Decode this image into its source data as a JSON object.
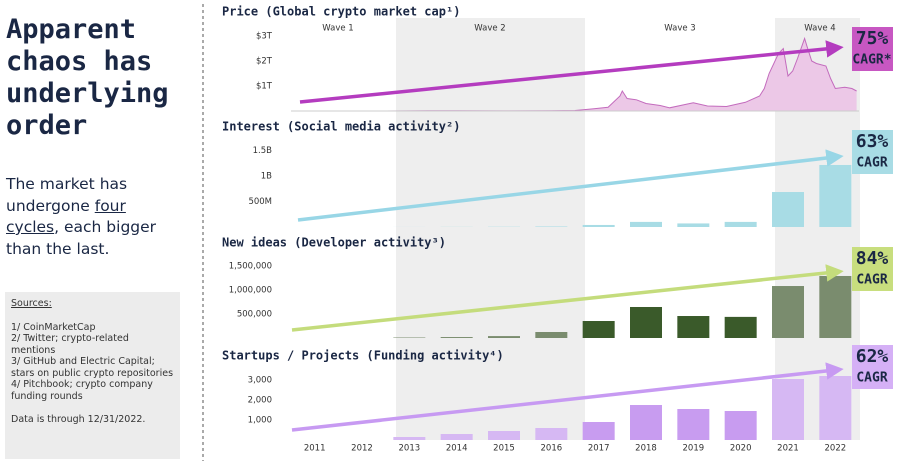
{
  "heading": "Apparent chaos has underlying order",
  "intro": {
    "before": "The market has undergone ",
    "link": "four cycles",
    "after": ", each bigger than the last."
  },
  "sources": {
    "title": "Sources:",
    "items": [
      "1/ CoinMarketCap",
      "2/ Twitter; crypto-related mentions",
      "3/ GitHub and Electric Capital; stars on public crypto repositories",
      "4/ Pitchbook; crypto company funding rounds"
    ],
    "note": "Data is through 12/31/2022."
  },
  "waves": [
    "Wave 1",
    "Wave 2",
    "Wave 3",
    "Wave 4"
  ],
  "chart_data": [
    {
      "type": "area",
      "title": "Price (Global crypto market cap¹)",
      "x": [
        2011,
        2013,
        2013.9,
        2014.5,
        2015.5,
        2016.5,
        2017.0,
        2017.4,
        2017.7,
        2017.95,
        2018.0,
        2018.1,
        2018.3,
        2018.5,
        2018.8,
        2019.0,
        2019.5,
        2019.8,
        2020.2,
        2020.6,
        2020.9,
        2021.0,
        2021.1,
        2021.3,
        2021.4,
        2021.5,
        2021.6,
        2021.7,
        2021.85,
        2021.9,
        2022.0,
        2022.1,
        2022.3,
        2022.4,
        2022.5,
        2022.7,
        2022.85,
        2022.95
      ],
      "values": [
        0,
        0.001,
        0.012,
        0.008,
        0.004,
        0.01,
        0.018,
        0.09,
        0.15,
        0.6,
        0.8,
        0.5,
        0.45,
        0.3,
        0.22,
        0.13,
        0.33,
        0.2,
        0.18,
        0.35,
        0.6,
        0.9,
        1.5,
        2.3,
        2.5,
        1.4,
        1.6,
        2.1,
        2.9,
        2.6,
        2.0,
        1.9,
        1.8,
        1.3,
        0.9,
        0.95,
        0.9,
        0.8
      ],
      "xlim": [
        2011,
        2023
      ],
      "ylim": [
        0,
        3.5
      ],
      "yticks": [
        {
          "value": 1,
          "label": "$1T"
        },
        {
          "value": 2,
          "label": "$2T"
        },
        {
          "value": 3,
          "label": "$3T"
        }
      ],
      "color": "#c36bbd",
      "fill": "#ecc8e7",
      "trend_color": "#b43cbf",
      "badge_color": "#c757c2",
      "cagr": "75%",
      "cagr_label": "CAGR*"
    },
    {
      "type": "bar",
      "title": "Interest (Social media activity²)",
      "values": [
        0,
        0,
        1,
        3,
        5,
        10,
        40,
        100,
        70,
        100,
        686,
        1216
      ],
      "ylim": [
        0,
        1700
      ],
      "yticks": [
        {
          "value": 500,
          "label": "500M"
        },
        {
          "value": 1000,
          "label": "1B"
        },
        {
          "value": 1500,
          "label": "1.5B"
        }
      ],
      "colors": [
        "#a8dce5",
        "#a8dce5",
        "#a8dce5",
        "#a8dce5",
        "#a8dce5",
        "#a8dce5",
        "#a8dce5",
        "#a8dce5",
        "#a8dce5",
        "#a8dce5",
        "#a8dce5",
        "#a8dce5"
      ],
      "trend_color": "#98d6e6",
      "badge_color": "#a8dce5",
      "cagr": "63%",
      "cagr_label": "CAGR"
    },
    {
      "type": "bar",
      "title": "New ideas (Developer activity³)",
      "values": [
        0,
        0,
        10000,
        20000,
        40000,
        125000,
        354000,
        646000,
        458000,
        440000,
        1083000,
        1292000
      ],
      "ylim": [
        0,
        1750000
      ],
      "yticks": [
        {
          "value": 500000,
          "label": "500,000"
        },
        {
          "value": 1000000,
          "label": "1,000,000"
        },
        {
          "value": 1500000,
          "label": "1,500,000"
        }
      ],
      "colors": [
        "#3a5a2a",
        "#3a5a2a",
        "#7a8c6e",
        "#7a8c6e",
        "#7a8c6e",
        "#7a8c6e",
        "#3a5a2a",
        "#3a5a2a",
        "#3a5a2a",
        "#3a5a2a",
        "#7a8c6e",
        "#7a8c6e"
      ],
      "trend_color": "#c4dc7c",
      "badge_color": "#c8de7e",
      "cagr": "84%",
      "cagr_label": "CAGR"
    },
    {
      "type": "bar",
      "title": "Startups / Projects (Funding activity⁴)",
      "categories": [
        "2011",
        "2012",
        "2013",
        "2014",
        "2015",
        "2016",
        "2017",
        "2018",
        "2019",
        "2020",
        "2021",
        "2022"
      ],
      "values": [
        0,
        0,
        150,
        300,
        450,
        600,
        900,
        1750,
        1550,
        1450,
        3050,
        3200
      ],
      "ylim": [
        0,
        3600
      ],
      "yticks": [
        {
          "value": 1000,
          "label": "1,000"
        },
        {
          "value": 2000,
          "label": "2,000"
        },
        {
          "value": 3000,
          "label": "3,000"
        }
      ],
      "colors": [
        "#d6b8f3",
        "#d6b8f3",
        "#d6b8f3",
        "#d6b8f3",
        "#d6b8f3",
        "#d6b8f3",
        "#c89cf0",
        "#c89cf0",
        "#c89cf0",
        "#c89cf0",
        "#d6b8f3",
        "#d6b8f3"
      ],
      "trend_color": "#c79af2",
      "badge_color": "#d5b0f6",
      "cagr": "62%",
      "cagr_label": "CAGR"
    }
  ]
}
